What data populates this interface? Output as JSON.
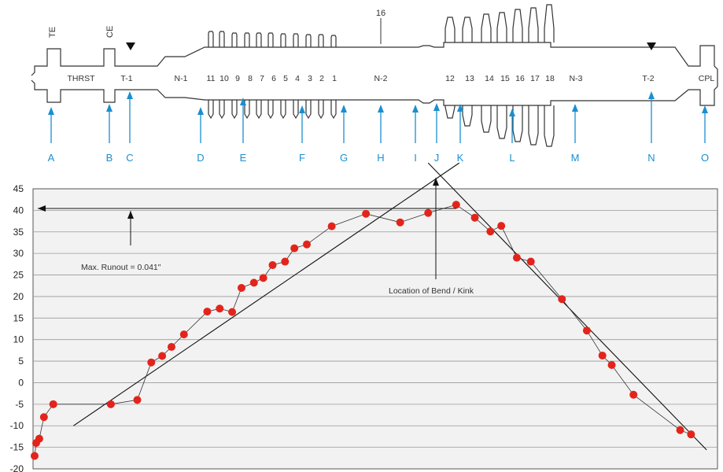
{
  "rotor": {
    "top_labels": {
      "te": "TE",
      "ce": "CE",
      "stage_16": "16"
    },
    "section_labels": [
      "THRST",
      "T-1",
      "N-1",
      "N-2",
      "N-3",
      "T-2",
      "CPL"
    ],
    "stage_numbers_left": [
      "11",
      "10",
      "9",
      "8",
      "7",
      "6",
      "5",
      "4",
      "3",
      "2",
      "1"
    ],
    "stage_numbers_right": [
      "12",
      "13",
      "14",
      "15",
      "16",
      "17",
      "18"
    ],
    "location_letters": [
      "A",
      "B",
      "C",
      "D",
      "E",
      "F",
      "G",
      "H",
      "I",
      "J",
      "K",
      "L",
      "M",
      "N",
      "O"
    ],
    "colors": {
      "outline": "#333333",
      "arrow": "#1a8fcf",
      "letters": "#1a8fcf"
    }
  },
  "chart_data": {
    "type": "scatter",
    "ylim": [
      -20,
      45
    ],
    "yticks": [
      "45",
      "40",
      "35",
      "30",
      "25",
      "20",
      "15",
      "10",
      "5",
      "0",
      "-5",
      "-10",
      "-15",
      "-20"
    ],
    "grid": true,
    "points_xy": [
      [
        0.5,
        -17
      ],
      [
        1.0,
        -14
      ],
      [
        2.0,
        -13
      ],
      [
        3.5,
        -8
      ],
      [
        6.5,
        -5
      ],
      [
        25,
        -5
      ],
      [
        33.5,
        -4
      ],
      [
        38,
        4.7
      ],
      [
        41.5,
        6.2
      ],
      [
        44.5,
        8.3
      ],
      [
        48.5,
        11.2
      ],
      [
        56,
        16.5
      ],
      [
        60,
        17.2
      ],
      [
        64,
        16.4
      ],
      [
        67,
        22
      ],
      [
        71,
        23.2
      ],
      [
        74,
        24.3
      ],
      [
        77,
        27.3
      ],
      [
        81,
        28.1
      ],
      [
        84,
        31.2
      ],
      [
        88,
        32.1
      ],
      [
        96,
        36.3
      ],
      [
        107,
        39.2
      ],
      [
        118,
        37.2
      ],
      [
        127,
        39.4
      ],
      [
        136,
        41.3
      ],
      [
        142,
        38.3
      ],
      [
        147,
        35.1
      ],
      [
        150.5,
        36.4
      ],
      [
        155.5,
        29
      ],
      [
        160,
        28.1
      ],
      [
        170,
        19.4
      ],
      [
        178,
        12.1
      ],
      [
        183,
        6.3
      ],
      [
        186,
        4.1
      ],
      [
        193,
        -2.8
      ],
      [
        208,
        -11
      ],
      [
        211.5,
        -12
      ]
    ],
    "fit_lines": [
      {
        "from": [
          13,
          -10
        ],
        "to": [
          137,
          51
        ]
      },
      {
        "from": [
          127,
          51
        ],
        "to": [
          216.5,
          -15.6
        ]
      }
    ],
    "annotations": {
      "max_runout": "Max. Runout = 0.041\"",
      "bend_location": "Location of Bend / Kink"
    },
    "colors": {
      "points": "#e3241b",
      "lines": "#111111",
      "plot_bg": "#f2f2f2",
      "grid": "#999999"
    }
  }
}
